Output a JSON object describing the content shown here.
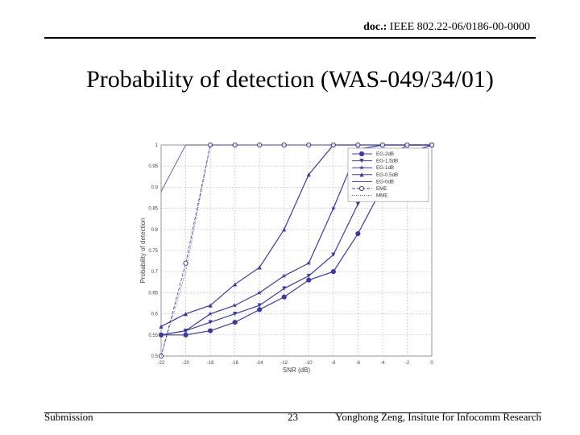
{
  "header": {
    "doc_label": "doc.:",
    "doc_number": "IEEE 802.22-06/0186-00-0000"
  },
  "title": "Probability of detection (WAS-049/34/01)",
  "footer": {
    "left": "Submission",
    "page": "23",
    "right": "Yonghong Zeng, Insitute for Infocomm Research"
  },
  "chart_data": {
    "type": "line",
    "xlabel": "SNR (dB)",
    "ylabel": "Probability of detection",
    "x": [
      -22,
      -20,
      -18,
      -16,
      -14,
      -12,
      -10,
      -8,
      -6,
      -4,
      -2,
      0
    ],
    "xticks": [
      "-22",
      "-20",
      "-18",
      "-16",
      "-14",
      "-12",
      "-10",
      "-8",
      "-6",
      "-4",
      "-2",
      "0"
    ],
    "yticks": [
      "0.5",
      "0.55",
      "0.6",
      "0.65",
      "0.7",
      "0.75",
      "0.8",
      "0.85",
      "0.9",
      "0.95",
      "1"
    ],
    "xlim": [
      -22,
      0
    ],
    "ylim": [
      0.5,
      1.0
    ],
    "grid": true,
    "legend_position": "top-right",
    "series": [
      {
        "name": "EG-2dB",
        "marker": "circle",
        "style": "solid",
        "values": [
          0.55,
          0.55,
          0.56,
          0.58,
          0.61,
          0.64,
          0.68,
          0.7,
          0.79,
          0.9,
          0.98,
          1.0
        ]
      },
      {
        "name": "EG-1.5dB",
        "marker": "triangle-down",
        "style": "solid",
        "values": [
          0.55,
          0.56,
          0.58,
          0.6,
          0.62,
          0.66,
          0.69,
          0.74,
          0.86,
          0.96,
          1.0,
          1.0
        ]
      },
      {
        "name": "EG-1dB",
        "marker": "star",
        "style": "solid",
        "values": [
          0.55,
          0.56,
          0.6,
          0.62,
          0.65,
          0.69,
          0.72,
          0.85,
          0.99,
          1.0,
          1.0,
          1.0
        ]
      },
      {
        "name": "EG-0.5dB",
        "marker": "triangle-up",
        "style": "solid",
        "values": [
          0.57,
          0.6,
          0.62,
          0.67,
          0.71,
          0.8,
          0.93,
          1.0,
          1.0,
          1.0,
          1.0,
          1.0
        ]
      },
      {
        "name": "EG-0dB",
        "marker": "none",
        "style": "solid",
        "values": [
          0.89,
          1.0,
          1.0,
          1.0,
          1.0,
          1.0,
          1.0,
          1.0,
          1.0,
          1.0,
          1.0,
          1.0
        ]
      },
      {
        "name": "EME",
        "marker": "circle-open",
        "style": "dashed",
        "values": [
          0.5,
          0.72,
          1.0,
          1.0,
          1.0,
          1.0,
          1.0,
          1.0,
          1.0,
          1.0,
          1.0,
          1.0
        ]
      },
      {
        "name": "MME",
        "marker": "none",
        "style": "dotted",
        "values": [
          0.5,
          0.7,
          1.0,
          1.0,
          1.0,
          1.0,
          1.0,
          1.0,
          1.0,
          1.0,
          1.0,
          1.0
        ]
      }
    ],
    "colors": {
      "series": "#3a3aa8",
      "grid": "#b8b8b8"
    }
  }
}
